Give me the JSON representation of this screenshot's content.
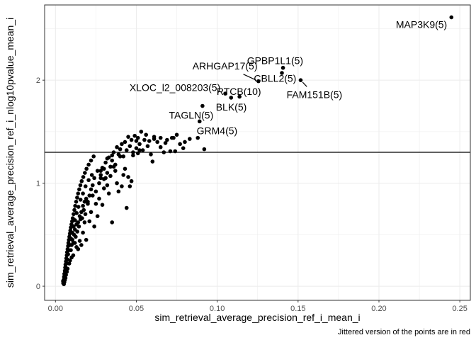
{
  "chart_data": {
    "type": "scatter",
    "title": "",
    "xlabel": "sim_retrieval_average_precision_ref_i_mean_i",
    "ylabel": "sim_retrieval_average_precision_ref_i_nlog10pvalue_mean_i",
    "caption": "Jittered version of the points are in red",
    "xlim": [
      -0.0067,
      0.2565
    ],
    "ylim": [
      -0.137,
      2.73
    ],
    "x_ticks": [
      0.0,
      0.05,
      0.1,
      0.15,
      0.2,
      0.25
    ],
    "x_tick_labels": [
      "0.00",
      "0.05",
      "0.10",
      "0.15",
      "0.20",
      "0.25"
    ],
    "y_ticks": [
      0,
      1,
      2
    ],
    "y_tick_labels": [
      "0",
      "1",
      "2"
    ],
    "hline": 1.3,
    "grid": true,
    "legend": "none",
    "point_color": "#000000",
    "line_color": "#000000",
    "labeled_points": [
      {
        "label": "MAP3K9(5)",
        "x": 0.2448,
        "y": 2.61,
        "lx": 0.2263,
        "ly": 2.54
      },
      {
        "label": "GPBP1L1(5)",
        "x": 0.1407,
        "y": 2.12,
        "lx": 0.1358,
        "ly": 2.19
      },
      {
        "label": "ARHGAP17(5)",
        "x": 0.1255,
        "y": 1.99,
        "lx": 0.1048,
        "ly": 2.14,
        "segment": true
      },
      {
        "label": "CBLL2(5)",
        "x": 0.14,
        "y": 2.07,
        "lx": 0.1358,
        "ly": 2.02
      },
      {
        "label": "FAM151B(5)",
        "x": 0.1516,
        "y": 2.0,
        "lx": 0.1601,
        "ly": 1.86,
        "segment": true
      },
      {
        "label": "XLOC_l2_008203(5)",
        "x": 0.105,
        "y": 1.87,
        "lx": 0.0739,
        "ly": 1.93
      },
      {
        "label": "RTCB(10)",
        "x": 0.1138,
        "y": 1.84,
        "lx": 0.1134,
        "ly": 1.89
      },
      {
        "label": "BLK(5)",
        "x": 0.1086,
        "y": 1.83,
        "lx": 0.1087,
        "ly": 1.74
      },
      {
        "label": "TAGLN(5)",
        "x": 0.0909,
        "y": 1.75,
        "lx": 0.0839,
        "ly": 1.66
      },
      {
        "label": "GRM4(5)",
        "x": 0.0891,
        "y": 1.6,
        "lx": 0.0999,
        "ly": 1.51
      }
    ],
    "points": [
      [
        0.0048,
        0.03
      ],
      [
        0.005,
        0.06
      ],
      [
        0.0053,
        0.09
      ],
      [
        0.0055,
        0.12
      ],
      [
        0.0058,
        0.15
      ],
      [
        0.006,
        0.18
      ],
      [
        0.0062,
        0.21
      ],
      [
        0.0065,
        0.24
      ],
      [
        0.0067,
        0.27
      ],
      [
        0.007,
        0.3
      ],
      [
        0.0072,
        0.33
      ],
      [
        0.0075,
        0.36
      ],
      [
        0.0078,
        0.39
      ],
      [
        0.008,
        0.42
      ],
      [
        0.0083,
        0.45
      ],
      [
        0.0086,
        0.48
      ],
      [
        0.0089,
        0.51
      ],
      [
        0.0092,
        0.54
      ],
      [
        0.0095,
        0.57
      ],
      [
        0.0099,
        0.6
      ],
      [
        0.0103,
        0.63
      ],
      [
        0.0107,
        0.66
      ],
      [
        0.0112,
        0.7
      ],
      [
        0.0117,
        0.74
      ],
      [
        0.0122,
        0.78
      ],
      [
        0.0128,
        0.82
      ],
      [
        0.0134,
        0.86
      ],
      [
        0.014,
        0.9
      ],
      [
        0.0147,
        0.94
      ],
      [
        0.0154,
        0.98
      ],
      [
        0.0162,
        1.02
      ],
      [
        0.0172,
        1.06
      ],
      [
        0.0182,
        1.1
      ],
      [
        0.0192,
        1.14
      ],
      [
        0.0205,
        1.18
      ],
      [
        0.022,
        1.22
      ],
      [
        0.0236,
        1.26
      ],
      [
        0.0056,
        0.1
      ],
      [
        0.006,
        0.14
      ],
      [
        0.0064,
        0.18
      ],
      [
        0.0068,
        0.22
      ],
      [
        0.0073,
        0.26
      ],
      [
        0.0078,
        0.31
      ],
      [
        0.0083,
        0.35
      ],
      [
        0.009,
        0.4
      ],
      [
        0.0097,
        0.46
      ],
      [
        0.0104,
        0.52
      ],
      [
        0.0112,
        0.58
      ],
      [
        0.0121,
        0.64
      ],
      [
        0.0131,
        0.71
      ],
      [
        0.0142,
        0.77
      ],
      [
        0.0155,
        0.84
      ],
      [
        0.017,
        0.9
      ],
      [
        0.0186,
        0.97
      ],
      [
        0.0205,
        1.03
      ],
      [
        0.0225,
        1.08
      ],
      [
        0.0095,
        0.35
      ],
      [
        0.01,
        0.4
      ],
      [
        0.0105,
        0.45
      ],
      [
        0.011,
        0.42
      ],
      [
        0.0115,
        0.5
      ],
      [
        0.012,
        0.55
      ],
      [
        0.0125,
        0.48
      ],
      [
        0.013,
        0.6
      ],
      [
        0.0135,
        0.53
      ],
      [
        0.014,
        0.62
      ],
      [
        0.0145,
        0.58
      ],
      [
        0.015,
        0.68
      ],
      [
        0.0155,
        0.65
      ],
      [
        0.016,
        0.72
      ],
      [
        0.0165,
        0.66
      ],
      [
        0.017,
        0.78
      ],
      [
        0.0175,
        0.74
      ],
      [
        0.018,
        0.82
      ],
      [
        0.0185,
        0.7
      ],
      [
        0.019,
        0.85
      ],
      [
        0.02,
        0.8
      ],
      [
        0.021,
        0.88
      ],
      [
        0.022,
        0.94
      ],
      [
        0.023,
        0.98
      ],
      [
        0.024,
        1.05
      ],
      [
        0.025,
        0.92
      ],
      [
        0.026,
        1.12
      ],
      [
        0.027,
        1.0
      ],
      [
        0.028,
        1.08
      ],
      [
        0.029,
        1.15
      ],
      [
        0.03,
        1.04
      ],
      [
        0.031,
        1.2
      ],
      [
        0.032,
        1.1
      ],
      [
        0.033,
        1.25
      ],
      [
        0.034,
        1.16
      ],
      [
        0.035,
        1.22
      ],
      [
        0.036,
        1.3
      ],
      [
        0.037,
        1.18
      ],
      [
        0.038,
        1.35
      ],
      [
        0.039,
        1.28
      ],
      [
        0.04,
        1.33
      ],
      [
        0.041,
        1.38
      ],
      [
        0.042,
        1.26
      ],
      [
        0.043,
        1.4
      ],
      [
        0.044,
        1.32
      ],
      [
        0.045,
        1.45
      ],
      [
        0.046,
        1.36
      ],
      [
        0.047,
        1.42
      ],
      [
        0.048,
        1.3
      ],
      [
        0.049,
        1.46
      ],
      [
        0.05,
        1.34
      ],
      [
        0.051,
        1.44
      ],
      [
        0.052,
        1.38
      ],
      [
        0.053,
        1.5
      ],
      [
        0.054,
        1.32
      ],
      [
        0.055,
        1.42
      ],
      [
        0.057,
        1.36
      ],
      [
        0.059,
        1.28
      ],
      [
        0.061,
        1.45
      ],
      [
        0.063,
        1.4
      ],
      [
        0.065,
        1.35
      ],
      [
        0.067,
        1.3
      ],
      [
        0.069,
        1.42
      ],
      [
        0.071,
        1.31
      ],
      [
        0.073,
        1.44
      ],
      [
        0.075,
        1.47
      ],
      [
        0.077,
        1.38
      ],
      [
        0.079,
        1.34
      ],
      [
        0.08,
        1.4
      ],
      [
        0.083,
        1.43
      ],
      [
        0.088,
        1.44
      ],
      [
        0.092,
        1.33
      ],
      [
        0.06,
        1.21
      ],
      [
        0.043,
        1.14
      ],
      [
        0.036,
        1.16
      ],
      [
        0.044,
        0.76
      ],
      [
        0.031,
        1.05
      ],
      [
        0.032,
        0.98
      ],
      [
        0.035,
        0.62
      ],
      [
        0.027,
        0.85
      ],
      [
        0.024,
        0.58
      ],
      [
        0.026,
        0.68
      ],
      [
        0.029,
        0.79
      ],
      [
        0.033,
        0.9
      ],
      [
        0.022,
        0.72
      ],
      [
        0.019,
        0.45
      ],
      [
        0.021,
        0.63
      ],
      [
        0.025,
        0.8
      ],
      [
        0.03,
        0.95
      ],
      [
        0.034,
        1.07
      ],
      [
        0.037,
        1.12
      ],
      [
        0.045,
        1.06
      ],
      [
        0.047,
        1.02
      ],
      [
        0.039,
        0.92
      ],
      [
        0.041,
        0.97
      ],
      [
        0.046,
        0.97
      ],
      [
        0.042,
        1.08
      ],
      [
        0.038,
        1.0
      ],
      [
        0.028,
        1.05
      ],
      [
        0.023,
        0.88
      ],
      [
        0.02,
        0.82
      ],
      [
        0.018,
        0.62
      ],
      [
        0.017,
        0.52
      ],
      [
        0.016,
        0.4
      ],
      [
        0.015,
        0.44
      ],
      [
        0.014,
        0.36
      ],
      [
        0.013,
        0.38
      ],
      [
        0.012,
        0.42
      ],
      [
        0.011,
        0.3
      ],
      [
        0.01,
        0.28
      ],
      [
        0.009,
        0.25
      ],
      [
        0.0085,
        0.22
      ],
      [
        0.0075,
        0.17
      ],
      [
        0.007,
        0.14
      ],
      [
        0.0065,
        0.11
      ],
      [
        0.0062,
        0.08
      ],
      [
        0.0058,
        0.06
      ],
      [
        0.0055,
        0.04
      ],
      [
        0.0052,
        0.02
      ],
      [
        0.0047,
        0.05
      ],
      [
        0.061,
        1.43
      ],
      [
        0.065,
        1.44
      ],
      [
        0.068,
        1.39
      ],
      [
        0.072,
        1.44
      ],
      [
        0.074,
        1.31
      ],
      [
        0.056,
        1.47
      ],
      [
        0.058,
        1.41
      ],
      [
        0.05,
        1.41
      ],
      [
        0.051,
        1.29
      ],
      [
        0.052,
        1.32
      ],
      [
        0.048,
        1.27
      ],
      [
        0.04,
        1.26
      ],
      [
        0.035,
        1.27
      ],
      [
        0.032,
        1.24
      ],
      [
        0.03,
        1.14
      ],
      [
        0.028,
        1.12
      ]
    ]
  }
}
